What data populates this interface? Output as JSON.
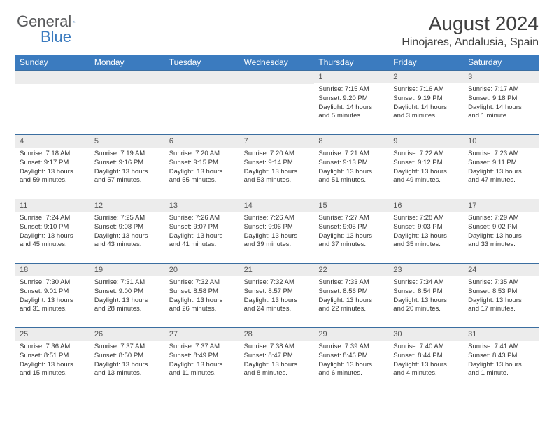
{
  "logo": {
    "text1": "General",
    "text2": "Blue"
  },
  "title": "August 2024",
  "location": "Hinojares, Andalusia, Spain",
  "colors": {
    "header_bg": "#3b7bbf",
    "header_text": "#ffffff",
    "daynum_bg": "#ececec",
    "border": "#3b6ea0",
    "body_text": "#333333"
  },
  "weekdays": [
    "Sunday",
    "Monday",
    "Tuesday",
    "Wednesday",
    "Thursday",
    "Friday",
    "Saturday"
  ],
  "layout": {
    "rows": 5,
    "cols": 7,
    "first_day_col_index": 4,
    "days_in_month": 31
  },
  "days": [
    {
      "n": 1,
      "sunrise": "7:15 AM",
      "sunset": "9:20 PM",
      "daylight": "14 hours and 5 minutes."
    },
    {
      "n": 2,
      "sunrise": "7:16 AM",
      "sunset": "9:19 PM",
      "daylight": "14 hours and 3 minutes."
    },
    {
      "n": 3,
      "sunrise": "7:17 AM",
      "sunset": "9:18 PM",
      "daylight": "14 hours and 1 minute."
    },
    {
      "n": 4,
      "sunrise": "7:18 AM",
      "sunset": "9:17 PM",
      "daylight": "13 hours and 59 minutes."
    },
    {
      "n": 5,
      "sunrise": "7:19 AM",
      "sunset": "9:16 PM",
      "daylight": "13 hours and 57 minutes."
    },
    {
      "n": 6,
      "sunrise": "7:20 AM",
      "sunset": "9:15 PM",
      "daylight": "13 hours and 55 minutes."
    },
    {
      "n": 7,
      "sunrise": "7:20 AM",
      "sunset": "9:14 PM",
      "daylight": "13 hours and 53 minutes."
    },
    {
      "n": 8,
      "sunrise": "7:21 AM",
      "sunset": "9:13 PM",
      "daylight": "13 hours and 51 minutes."
    },
    {
      "n": 9,
      "sunrise": "7:22 AM",
      "sunset": "9:12 PM",
      "daylight": "13 hours and 49 minutes."
    },
    {
      "n": 10,
      "sunrise": "7:23 AM",
      "sunset": "9:11 PM",
      "daylight": "13 hours and 47 minutes."
    },
    {
      "n": 11,
      "sunrise": "7:24 AM",
      "sunset": "9:10 PM",
      "daylight": "13 hours and 45 minutes."
    },
    {
      "n": 12,
      "sunrise": "7:25 AM",
      "sunset": "9:08 PM",
      "daylight": "13 hours and 43 minutes."
    },
    {
      "n": 13,
      "sunrise": "7:26 AM",
      "sunset": "9:07 PM",
      "daylight": "13 hours and 41 minutes."
    },
    {
      "n": 14,
      "sunrise": "7:26 AM",
      "sunset": "9:06 PM",
      "daylight": "13 hours and 39 minutes."
    },
    {
      "n": 15,
      "sunrise": "7:27 AM",
      "sunset": "9:05 PM",
      "daylight": "13 hours and 37 minutes."
    },
    {
      "n": 16,
      "sunrise": "7:28 AM",
      "sunset": "9:03 PM",
      "daylight": "13 hours and 35 minutes."
    },
    {
      "n": 17,
      "sunrise": "7:29 AM",
      "sunset": "9:02 PM",
      "daylight": "13 hours and 33 minutes."
    },
    {
      "n": 18,
      "sunrise": "7:30 AM",
      "sunset": "9:01 PM",
      "daylight": "13 hours and 31 minutes."
    },
    {
      "n": 19,
      "sunrise": "7:31 AM",
      "sunset": "9:00 PM",
      "daylight": "13 hours and 28 minutes."
    },
    {
      "n": 20,
      "sunrise": "7:32 AM",
      "sunset": "8:58 PM",
      "daylight": "13 hours and 26 minutes."
    },
    {
      "n": 21,
      "sunrise": "7:32 AM",
      "sunset": "8:57 PM",
      "daylight": "13 hours and 24 minutes."
    },
    {
      "n": 22,
      "sunrise": "7:33 AM",
      "sunset": "8:56 PM",
      "daylight": "13 hours and 22 minutes."
    },
    {
      "n": 23,
      "sunrise": "7:34 AM",
      "sunset": "8:54 PM",
      "daylight": "13 hours and 20 minutes."
    },
    {
      "n": 24,
      "sunrise": "7:35 AM",
      "sunset": "8:53 PM",
      "daylight": "13 hours and 17 minutes."
    },
    {
      "n": 25,
      "sunrise": "7:36 AM",
      "sunset": "8:51 PM",
      "daylight": "13 hours and 15 minutes."
    },
    {
      "n": 26,
      "sunrise": "7:37 AM",
      "sunset": "8:50 PM",
      "daylight": "13 hours and 13 minutes."
    },
    {
      "n": 27,
      "sunrise": "7:37 AM",
      "sunset": "8:49 PM",
      "daylight": "13 hours and 11 minutes."
    },
    {
      "n": 28,
      "sunrise": "7:38 AM",
      "sunset": "8:47 PM",
      "daylight": "13 hours and 8 minutes."
    },
    {
      "n": 29,
      "sunrise": "7:39 AM",
      "sunset": "8:46 PM",
      "daylight": "13 hours and 6 minutes."
    },
    {
      "n": 30,
      "sunrise": "7:40 AM",
      "sunset": "8:44 PM",
      "daylight": "13 hours and 4 minutes."
    },
    {
      "n": 31,
      "sunrise": "7:41 AM",
      "sunset": "8:43 PM",
      "daylight": "13 hours and 1 minute."
    }
  ],
  "labels": {
    "sunrise": "Sunrise:",
    "sunset": "Sunset:",
    "daylight": "Daylight:"
  }
}
